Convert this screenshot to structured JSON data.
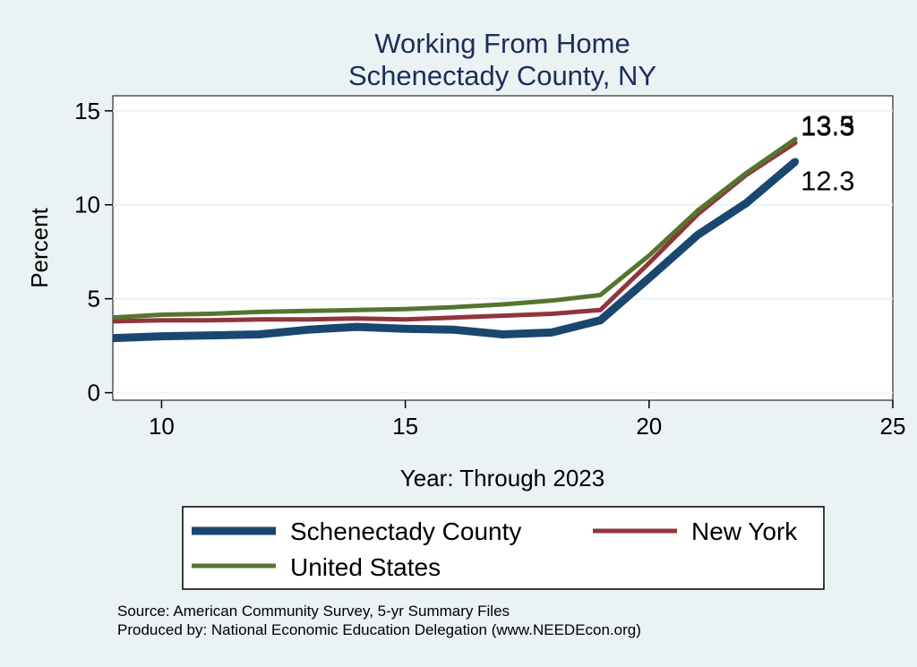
{
  "chart_data": {
    "type": "line",
    "title": "Working From Home",
    "subtitle": "Schenectady County, NY",
    "xlabel": "Year: Through 2023",
    "ylabel": "Percent",
    "xlim": [
      9,
      25
    ],
    "ylim": [
      -0.4,
      15.8
    ],
    "x_ticks": [
      10,
      15,
      20,
      25
    ],
    "y_ticks": [
      0,
      5,
      10,
      15
    ],
    "grid": true,
    "legend_position": "bottom",
    "series": [
      {
        "name": "Schenectady County",
        "color": "#1a476f",
        "x": [
          9,
          10,
          11,
          12,
          13,
          14,
          15,
          16,
          17,
          18,
          19,
          20,
          21,
          22,
          23
        ],
        "values": [
          2.9,
          3.0,
          3.05,
          3.1,
          3.35,
          3.5,
          3.4,
          3.35,
          3.1,
          3.2,
          3.85,
          6.1,
          8.4,
          10.1,
          12.3
        ],
        "end_label": "12.3"
      },
      {
        "name": "New York",
        "color": "#90353b",
        "x": [
          9,
          10,
          11,
          12,
          13,
          14,
          15,
          16,
          17,
          18,
          19,
          20,
          21,
          22,
          23
        ],
        "values": [
          3.8,
          3.85,
          3.85,
          3.9,
          3.9,
          3.95,
          3.9,
          4.0,
          4.1,
          4.2,
          4.4,
          6.9,
          9.5,
          11.6,
          13.3
        ],
        "end_label": "13.3"
      },
      {
        "name": "United States",
        "color": "#55752f",
        "x": [
          9,
          10,
          11,
          12,
          13,
          14,
          15,
          16,
          17,
          18,
          19,
          20,
          21,
          22,
          23
        ],
        "values": [
          4.0,
          4.15,
          4.2,
          4.3,
          4.35,
          4.4,
          4.45,
          4.55,
          4.7,
          4.9,
          5.2,
          7.3,
          9.7,
          11.7,
          13.5
        ],
        "end_label": "13.5"
      }
    ]
  },
  "source": {
    "line1": "Source: American Community Survey, 5-yr Summary Files",
    "line2": "Produced by: National Economic Education Delegation (www.NEEDEcon.org)"
  }
}
